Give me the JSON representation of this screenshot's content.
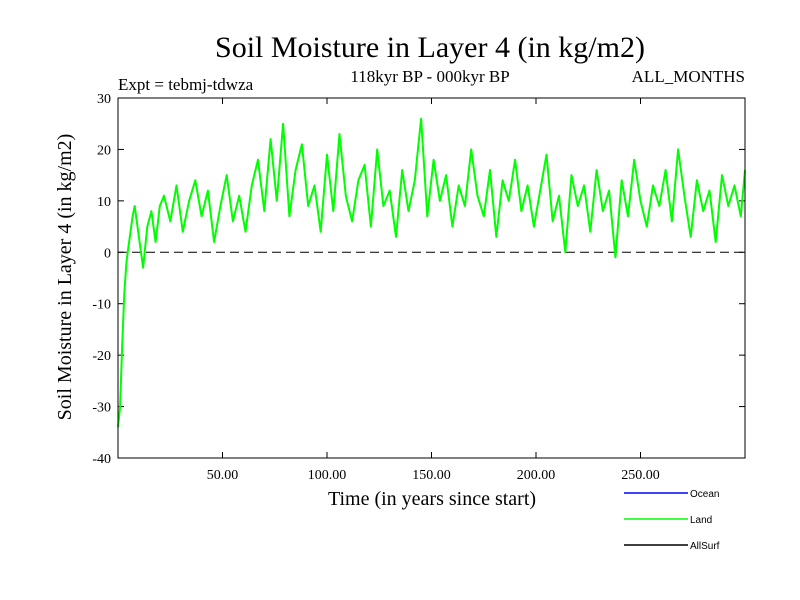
{
  "chart_data": {
    "type": "line",
    "title": "Soil Moisture in Layer 4 (in kg/m2)",
    "subtitle": "118kyr BP - 000kyr BP",
    "left_note": "Expt = tebmj-tdwza",
    "right_note": "ALL_MONTHS",
    "xlabel": "Time (in years since start)",
    "ylabel": "Soil Moisture in Layer 4 (in kg/m2)",
    "xlim": [
      0,
      300
    ],
    "ylim": [
      -40,
      30
    ],
    "x_ticks": [
      50,
      100,
      150,
      200,
      250
    ],
    "x_tick_labels": [
      "50.00",
      "100.00",
      "150.00",
      "200.00",
      "250.00"
    ],
    "y_ticks": [
      -40,
      -30,
      -20,
      -10,
      0,
      10,
      20,
      30
    ],
    "y_tick_labels": [
      "-40",
      "-30",
      "-20",
      "-10",
      "0",
      "10",
      "20",
      "30"
    ],
    "reference_line": {
      "y": 0,
      "style": "dashed",
      "color": "#000000"
    },
    "series": [
      {
        "name": "Land",
        "color": "#00ff00",
        "x": [
          0,
          1,
          2,
          3,
          4,
          5,
          6,
          7,
          8,
          9,
          10,
          12,
          14,
          16,
          18,
          20,
          22,
          25,
          28,
          31,
          34,
          37,
          40,
          43,
          46,
          49,
          52,
          55,
          58,
          61,
          64,
          67,
          70,
          73,
          76,
          79,
          82,
          85,
          88,
          91,
          94,
          97,
          100,
          103,
          106,
          109,
          112,
          115,
          118,
          121,
          124,
          127,
          130,
          133,
          136,
          139,
          142,
          145,
          148,
          151,
          154,
          157,
          160,
          163,
          166,
          169,
          172,
          175,
          178,
          181,
          184,
          187,
          190,
          193,
          196,
          199,
          202,
          205,
          208,
          211,
          214,
          217,
          220,
          223,
          226,
          229,
          232,
          235,
          238,
          241,
          244,
          247,
          250,
          253,
          256,
          259,
          262,
          265,
          268,
          271,
          274,
          277,
          280,
          283,
          286,
          289,
          292,
          295,
          298,
          300
        ],
        "values": [
          -34,
          -30,
          -18,
          -8,
          -2,
          1,
          4,
          7,
          9,
          6,
          3,
          -3,
          5,
          8,
          2,
          9,
          11,
          6,
          13,
          4,
          10,
          14,
          7,
          12,
          2,
          9,
          15,
          6,
          11,
          4,
          13,
          18,
          8,
          22,
          10,
          25,
          7,
          16,
          21,
          9,
          13,
          4,
          19,
          8,
          23,
          11,
          6,
          14,
          17,
          5,
          20,
          9,
          12,
          3,
          16,
          8,
          14,
          26,
          7,
          18,
          10,
          15,
          5,
          13,
          9,
          20,
          11,
          7,
          16,
          3,
          14,
          10,
          18,
          8,
          13,
          5,
          12,
          19,
          6,
          11,
          0,
          15,
          9,
          13,
          4,
          16,
          8,
          12,
          -1,
          14,
          7,
          18,
          10,
          5,
          13,
          9,
          16,
          6,
          20,
          11,
          3,
          14,
          8,
          12,
          2,
          15,
          9,
          13,
          7,
          16
        ]
      }
    ],
    "legend": [
      {
        "name": "Ocean",
        "color": "#0000ff"
      },
      {
        "name": "Land",
        "color": "#00ff00"
      },
      {
        "name": "AllSurf",
        "color": "#000000"
      }
    ]
  }
}
